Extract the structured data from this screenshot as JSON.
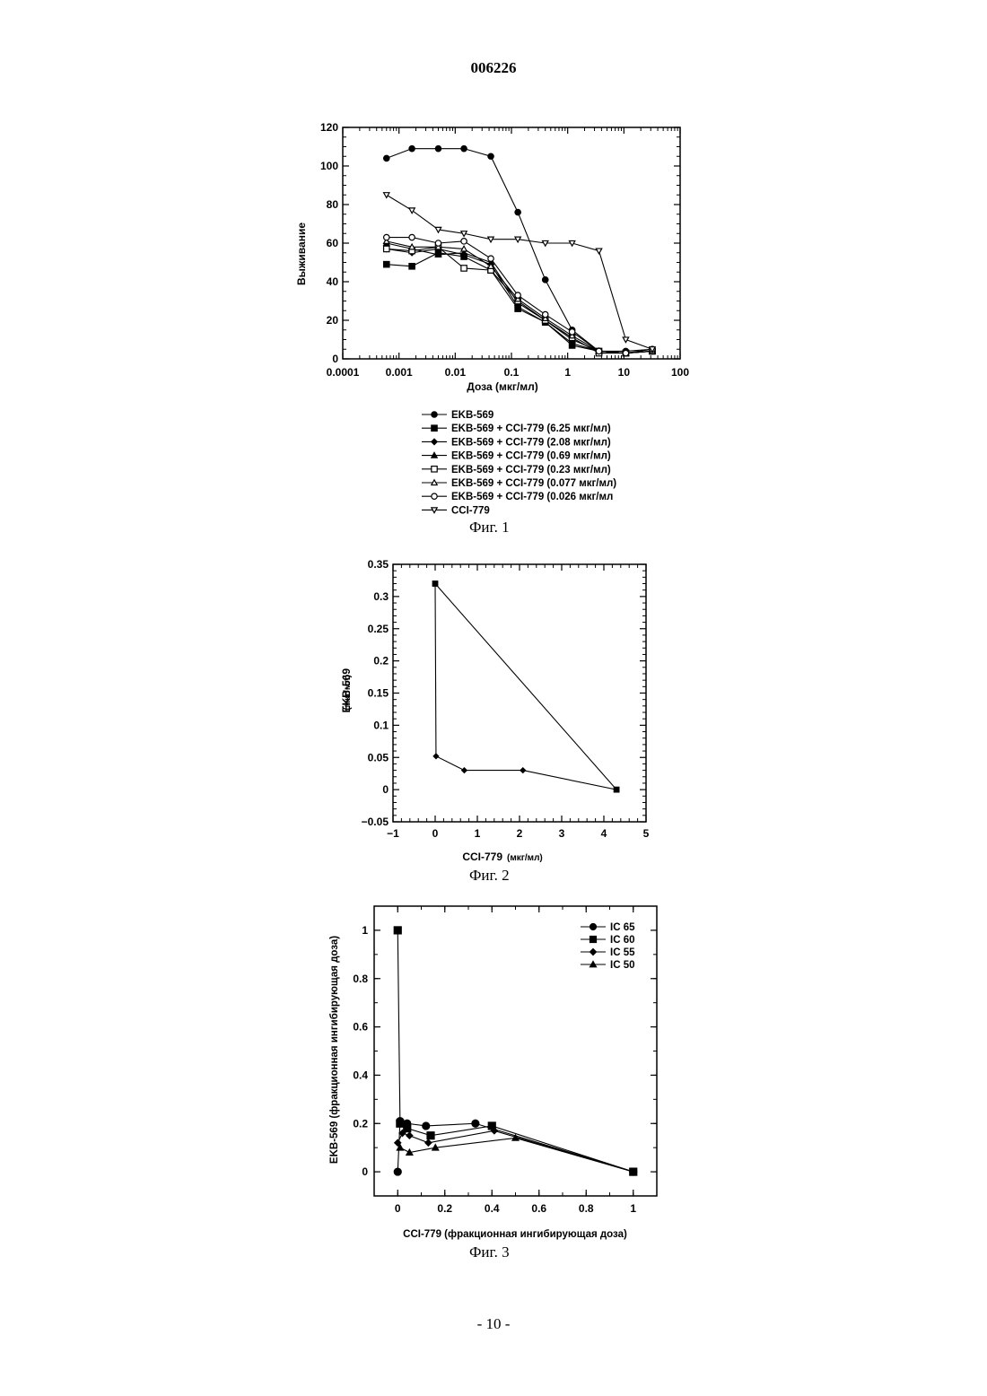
{
  "header": {
    "doc_number": "006226"
  },
  "footer": {
    "page_number": "- 10 -"
  },
  "figures": [
    {
      "caption": "Фиг. 1"
    },
    {
      "caption": "Фиг. 2"
    },
    {
      "caption": "Фиг. 3"
    }
  ],
  "chart_data": [
    {
      "type": "line",
      "xscale": "log",
      "xlim": [
        0.0001,
        100
      ],
      "ylim": [
        0,
        120
      ],
      "xticks": [
        "0.0001",
        "0.001",
        "0.01",
        "0.1",
        "1",
        "10",
        "100"
      ],
      "yticks": [
        "0",
        "20",
        "40",
        "60",
        "80",
        "100",
        "120"
      ],
      "xlabel": "Доза (мкг/мл)",
      "ylabel": "Выживание",
      "legend_position": "below",
      "x": [
        0.0006,
        0.0017,
        0.005,
        0.0143,
        0.043,
        0.13,
        0.4,
        1.2,
        3.6,
        10.8,
        32
      ],
      "series": [
        {
          "legend": "EKB-569",
          "marker": "circle-filled",
          "y": [
            104,
            109,
            109,
            109,
            105,
            76,
            41,
            15,
            4,
            4,
            5
          ]
        },
        {
          "legend": "EKB-569  +  CCI-779  (6.25 мкг/мл)",
          "marker": "square-filled",
          "y": [
            49,
            48,
            55,
            53,
            46,
            26,
            19,
            7,
            4,
            3,
            4
          ]
        },
        {
          "legend": "EKB-569  +  CCI-779  (2.08 мкг/мл)",
          "marker": "diamond-filled",
          "y": [
            57,
            55,
            57,
            54,
            49,
            27,
            19,
            8,
            4,
            3,
            4
          ]
        },
        {
          "legend": "EKB-569  +  CCI-779  (0.69 мкг/мл)",
          "marker": "triangle-filled",
          "y": [
            60,
            57,
            54,
            55,
            50,
            29,
            20,
            10,
            4,
            3,
            4
          ]
        },
        {
          "legend": "EKB-569  +  CCI-779  (0.23 мкг/мл)",
          "marker": "square-open",
          "y": [
            57,
            56,
            58,
            47,
            46,
            30,
            20,
            11,
            3,
            3,
            4
          ]
        },
        {
          "legend": "EKB-569  +  CCI-779  (0.077 мкг/мл)",
          "marker": "triangle-open",
          "y": [
            61,
            58,
            58,
            57,
            48,
            31,
            21,
            12,
            4,
            3,
            4
          ]
        },
        {
          "legend": "EKB-569  +  CCI-779  (0.026 мкг/мл",
          "marker": "circle-open",
          "y": [
            63,
            63,
            60,
            61,
            52,
            33,
            23,
            14,
            4,
            3,
            5
          ]
        },
        {
          "legend": "CCI-779",
          "marker": "triangle-down-open",
          "y": [
            85,
            77,
            67,
            65,
            62,
            62,
            60,
            60,
            56,
            10,
            5
          ]
        }
      ]
    },
    {
      "type": "line",
      "xlim": [
        -1,
        5
      ],
      "ylim": [
        -0.05,
        0.35
      ],
      "xticks": [
        "−1",
        "0",
        "1",
        "2",
        "3",
        "4",
        "5"
      ],
      "yticks": [
        "−0.05",
        "0",
        "0.05",
        "0.1",
        "0.15",
        "0.2",
        "0.25",
        "0.3",
        "0.35"
      ],
      "xlabel": "CCI-779",
      "xlabel_unit": "(мкг/мл)",
      "ylabel": "EKB-569",
      "ylabel_unit": "(мкг/мл)",
      "points": [
        {
          "x": 0,
          "y": 0.32,
          "marker": "square"
        },
        {
          "x": 0.02,
          "y": 0.052,
          "marker": "diamond"
        },
        {
          "x": 0.69,
          "y": 0.03,
          "marker": "diamond"
        },
        {
          "x": 2.08,
          "y": 0.03,
          "marker": "diamond"
        },
        {
          "x": 4.3,
          "y": 0,
          "marker": "square"
        }
      ],
      "polyline_order": [
        0,
        1,
        2,
        3,
        4,
        0
      ]
    },
    {
      "type": "line",
      "xlim": [
        -0.1,
        1.1
      ],
      "ylim": [
        -0.1,
        1.1
      ],
      "xticks": [
        "0",
        "0.2",
        "0.4",
        "0.6",
        "0.8",
        "1"
      ],
      "yticks": [
        "0",
        "0.2",
        "0.4",
        "0.6",
        "0.8",
        "1"
      ],
      "xlabel": "CCI-779  (фракционная ингибирующая доза)",
      "ylabel": "EKB-569 (фракционная ингибирующая доза)",
      "legend_position": "top-right",
      "series": [
        {
          "legend": "IC  65",
          "marker": "circle",
          "x": [
            0,
            0.01,
            0.04,
            0.12,
            0.33,
            1
          ],
          "y": [
            0,
            0.21,
            0.2,
            0.19,
            0.2,
            0
          ]
        },
        {
          "legend": "IC  60",
          "marker": "square",
          "x": [
            0,
            0.01,
            0.04,
            0.14,
            0.4,
            1
          ],
          "y": [
            1,
            0.2,
            0.18,
            0.15,
            0.19,
            0
          ]
        },
        {
          "legend": "IC  55",
          "marker": "diamond",
          "x": [
            0,
            0.02,
            0.05,
            0.13,
            0.41,
            1
          ],
          "y": [
            0.12,
            0.16,
            0.15,
            0.12,
            0.17,
            0
          ]
        },
        {
          "legend": "IC  50",
          "marker": "triangle",
          "x": [
            0.01,
            0.05,
            0.16,
            0.5,
            1
          ],
          "y": [
            0.1,
            0.08,
            0.1,
            0.14,
            0
          ]
        }
      ]
    }
  ]
}
